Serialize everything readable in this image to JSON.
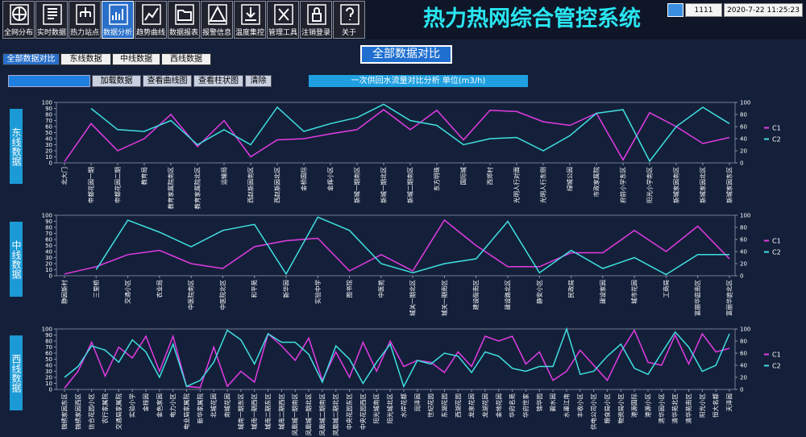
{
  "toolbar": [
    "全网分布",
    "实时数据",
    "热力站点",
    "数据分析",
    "趋势曲线",
    "数据报表",
    "报警信息",
    "温度集控",
    "管理工具",
    "注销登录",
    "关于"
  ],
  "title": "热力热网综合管控系统",
  "user": "1111",
  "datetime": "2020-7-22 11:25:23",
  "tabs": [
    "全部数据对比",
    "东线数据",
    "中线数据",
    "西线数据"
  ],
  "main_button": "全部数据对比",
  "controls": [
    "加载数据",
    "查看曲线图",
    "查看柱状图",
    "清除"
  ],
  "analysis_title": "一次供回水流量对比分析 单位(m3/h)",
  "chart_data": [
    {
      "type": "line",
      "title": "东线数据",
      "ylim": [
        0,
        100
      ],
      "yticks": [
        0,
        10,
        20,
        30,
        40,
        50,
        60,
        70,
        80,
        90,
        100
      ],
      "y2lim": [
        0,
        100
      ],
      "y2ticks": [
        0,
        20,
        40,
        60,
        80,
        100
      ],
      "categories": [
        "北大门",
        "帝都花园一期",
        "帝都花园二期",
        "教育局",
        "教育家属院南区",
        "教育家属院北区",
        "运输局",
        "西赵新园南区",
        "西赵新园北区",
        "金桥国际",
        "金辉小区",
        "新城一期南区",
        "新城一期北区",
        "新城二期南区",
        "东方明珠",
        "国际城",
        "西郊村",
        "光明人行对面",
        "光明人行东侧",
        "绿城公园",
        "市政家属院",
        "府前小学东区",
        "阳光小学南区",
        "新城家园南区",
        "新城家园北区",
        "新城家园东区"
      ],
      "series": [
        {
          "name": "C1",
          "color": "#e33be3",
          "values": [
            2,
            65,
            20,
            40,
            80,
            27,
            70,
            10,
            38,
            40,
            48,
            55,
            88,
            55,
            87,
            38,
            87,
            85,
            68,
            62,
            82,
            5,
            83,
            60,
            32,
            42
          ]
        },
        {
          "name": "C2",
          "color": "#3fe0e0",
          "values": [
            null,
            90,
            55,
            52,
            70,
            30,
            55,
            30,
            92,
            52,
            65,
            75,
            97,
            70,
            62,
            30,
            40,
            42,
            20,
            45,
            82,
            88,
            3,
            60,
            92,
            65
          ]
        }
      ]
    },
    {
      "type": "line",
      "title": "中线数据",
      "ylim": [
        0,
        100
      ],
      "yticks": [
        0,
        10,
        20,
        30,
        40,
        50,
        60,
        70,
        80,
        90,
        100
      ],
      "y2lim": [
        0,
        100
      ],
      "y2ticks": [
        0,
        20,
        40,
        60,
        80,
        100
      ],
      "categories": [
        "静园新村",
        "三里桥",
        "交通小区",
        "农业局",
        "中医院南区",
        "中医院北区",
        "和平苑",
        "新华园",
        "实验中学",
        "图书馆",
        "中医苑",
        "城关一期北区",
        "城关一期南区",
        "建设街南区",
        "建设路北区",
        "静安小区",
        "民政局",
        "建设家园",
        "城市花园",
        "工商局",
        "富丽华庭南区",
        "富丽华庭北区"
      ],
      "series": [
        {
          "name": "C1",
          "color": "#e33be3",
          "values": [
            3,
            15,
            35,
            42,
            20,
            12,
            48,
            58,
            62,
            8,
            35,
            8,
            92,
            50,
            15,
            15,
            38,
            38,
            75,
            40,
            82,
            28
          ]
        },
        {
          "name": "C2",
          "color": "#3fe0e0",
          "values": [
            null,
            10,
            92,
            72,
            48,
            75,
            85,
            3,
            97,
            75,
            20,
            5,
            20,
            28,
            90,
            5,
            42,
            12,
            30,
            2,
            35,
            35
          ]
        }
      ]
    },
    {
      "type": "line",
      "title": "西线数据",
      "ylim": [
        0,
        100
      ],
      "yticks": [
        0,
        10,
        20,
        30,
        40,
        50,
        60,
        70,
        80,
        90,
        100
      ],
      "y2lim": [
        0,
        100
      ],
      "y2ticks": [
        0,
        20,
        40,
        60,
        80,
        100
      ],
      "categories": [
        "锦绣家园东区",
        "锦绣家园西区",
        "信合花园小区",
        "农行家属院",
        "交通局家属院",
        "实验小学",
        "金桂园",
        "金色家园",
        "电力小区",
        "电业局家属院",
        "新华家属院",
        "北城花园",
        "南城花园",
        "城南一期东区",
        "城南一期西区",
        "城南二期东区",
        "城南二期西区",
        "凤凰城一期南区",
        "凤凰城一期北区",
        "凤凰城二期南区",
        "凤凰城二期北区",
        "中央花园东区",
        "中央花园西区",
        "阳光城南区",
        "阳光城北区",
        "水岸花都",
        "润泽园",
        "世纪花园",
        "东湖花园",
        "西湖花园",
        "龙泉花园",
        "龙湖花园",
        "金地花园",
        "华府名苑",
        "华府世家",
        "锦华园",
        "碧水园",
        "水墨江南",
        "丰收小区",
        "供电公司小区",
        "粮食局小区",
        "物资局小区",
        "港源国际",
        "港源小区",
        "清华园小区",
        "清华苑北区",
        "清华苑南区",
        "阳光小区",
        "恒大名都",
        "天泽园"
      ],
      "series": [
        {
          "name": "C1",
          "color": "#e33be3",
          "values": [
            2,
            30,
            78,
            22,
            70,
            52,
            88,
            30,
            88,
            5,
            3,
            70,
            5,
            30,
            12,
            92,
            72,
            48,
            85,
            15,
            62,
            20,
            78,
            30,
            80,
            38,
            48,
            45,
            28,
            62,
            38,
            88,
            80,
            88,
            42,
            62,
            15,
            30,
            65,
            40,
            15,
            62,
            98,
            45,
            40,
            90,
            42,
            92,
            62,
            68
          ]
        },
        {
          "name": "C2",
          "color": "#3fe0e0",
          "values": [
            20,
            38,
            72,
            65,
            45,
            82,
            62,
            20,
            75,
            5,
            15,
            45,
            98,
            82,
            42,
            92,
            78,
            78,
            58,
            12,
            72,
            50,
            10,
            45,
            75,
            5,
            48,
            42,
            60,
            55,
            28,
            62,
            55,
            35,
            30,
            38,
            38,
            100,
            25,
            30,
            55,
            75,
            35,
            25,
            60,
            95,
            70,
            30,
            40,
            92
          ]
        }
      ]
    }
  ]
}
